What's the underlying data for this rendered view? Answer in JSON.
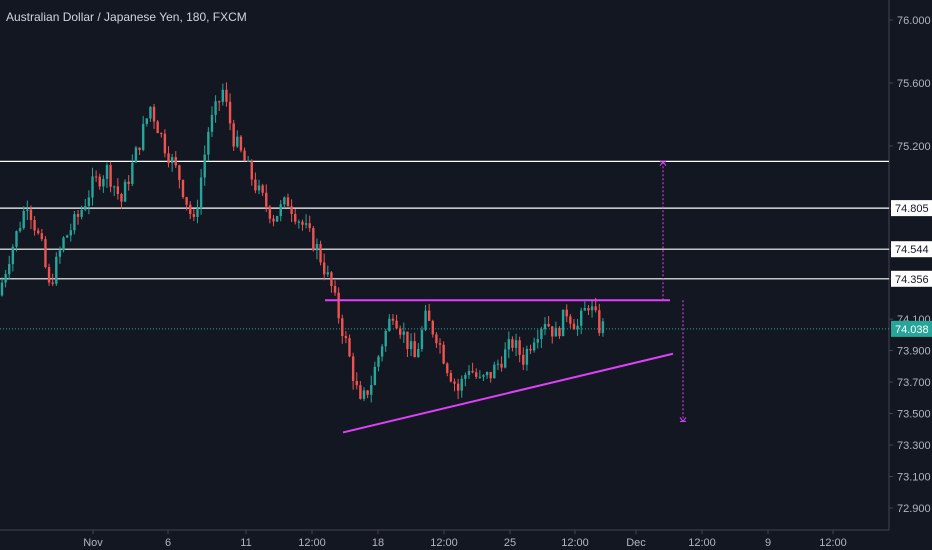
{
  "header": {
    "title": "Australian Dollar / Japanese Yen, 180, FXCM"
  },
  "colors": {
    "background": "#131722",
    "up": "#26a69a",
    "down": "#ef5350",
    "pattern": "#e040fb",
    "level_line": "#ffffff",
    "last_price": "#26a69a"
  },
  "chart_data": {
    "type": "candlestick",
    "title": "Australian Dollar / Japanese Yen, 180, FXCM",
    "grid": false,
    "ylim": [
      72.76,
      76.1
    ],
    "y_ticks": [
      "76.000",
      "75.600",
      "75.200",
      "74.805",
      "74.544",
      "74.356",
      "74.100",
      "73.900",
      "73.700",
      "73.500",
      "73.300",
      "73.100",
      "72.900"
    ],
    "x_ticks": [
      "Nov",
      "6",
      "11",
      "12:00",
      "18",
      "12:00",
      "25",
      "12:00",
      "Dec",
      "12:00",
      "9",
      "12:00"
    ],
    "horizontal_levels": [
      75.102,
      74.805,
      74.544,
      74.356
    ],
    "last_price": {
      "value": 74.038,
      "label": "74.038"
    },
    "pattern": {
      "name": "ascending triangle",
      "resistance": 74.22,
      "support_start": 73.38,
      "support_end": 73.88
    },
    "price_path": [
      [
        0,
        74.25
      ],
      [
        3,
        74.5
      ],
      [
        8,
        74.85
      ],
      [
        12,
        74.55
      ],
      [
        14,
        74.3
      ],
      [
        18,
        74.6
      ],
      [
        22,
        74.75
      ],
      [
        26,
        74.95
      ],
      [
        30,
        75.05
      ],
      [
        34,
        74.85
      ],
      [
        38,
        75.15
      ],
      [
        42,
        75.45
      ],
      [
        46,
        75.2
      ],
      [
        50,
        75.0
      ],
      [
        54,
        74.7
      ],
      [
        58,
        75.3
      ],
      [
        62,
        75.55
      ],
      [
        65,
        75.25
      ],
      [
        68,
        75.1
      ],
      [
        72,
        74.9
      ],
      [
        76,
        74.75
      ],
      [
        80,
        74.85
      ],
      [
        84,
        74.7
      ],
      [
        88,
        74.55
      ],
      [
        92,
        74.3
      ],
      [
        96,
        73.95
      ],
      [
        100,
        73.55
      ],
      [
        103,
        73.7
      ],
      [
        106,
        73.95
      ],
      [
        109,
        74.15
      ],
      [
        112,
        74.0
      ],
      [
        115,
        73.85
      ],
      [
        118,
        74.1
      ],
      [
        121,
        74.0
      ],
      [
        124,
        73.8
      ],
      [
        127,
        73.65
      ],
      [
        130,
        73.8
      ],
      [
        133,
        73.7
      ],
      [
        136,
        73.75
      ],
      [
        139,
        73.85
      ],
      [
        142,
        73.95
      ],
      [
        145,
        73.85
      ],
      [
        148,
        74.0
      ],
      [
        151,
        74.1
      ],
      [
        154,
        74.0
      ],
      [
        157,
        74.15
      ],
      [
        160,
        74.05
      ],
      [
        163,
        74.2
      ],
      [
        166,
        74.05
      ]
    ],
    "projections": [
      {
        "from": 74.22,
        "to": 75.1
      },
      {
        "from": 74.22,
        "to": 73.45
      }
    ]
  }
}
